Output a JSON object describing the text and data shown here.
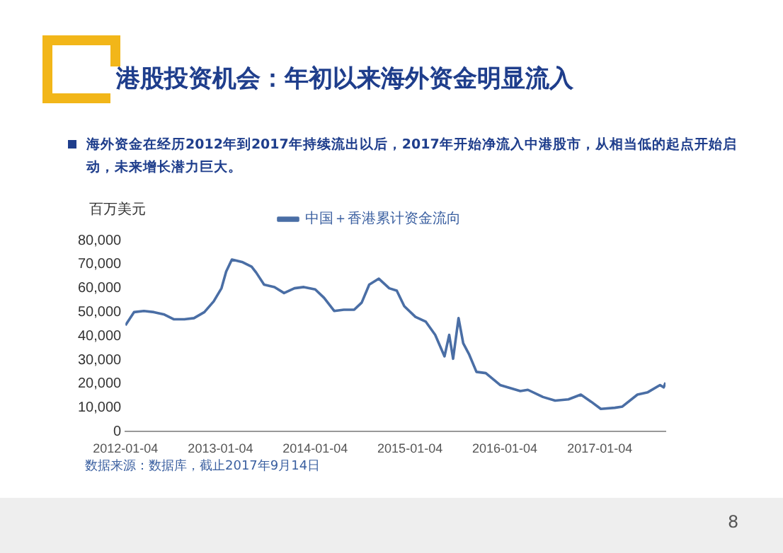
{
  "chart_data": {
    "type": "line",
    "title": "港股投资机会：年初以来海外资金明显流入",
    "subtitle": "海外资金在经历2012年到2017年持续流出以后，2017年开始净流入中港股市，从相当低的起点开始启动，未来增长潜力巨大。",
    "ylabel": "百万美元",
    "annotations": [
      "数据来源：数据库，截止2017年9月14日",
      "8"
    ],
    "x": [
      "2012-01-04",
      "2012-02-06",
      "2012-03-15",
      "2012-04-23",
      "2012-06-02",
      "2012-07-09",
      "2012-08-18",
      "2012-09-24",
      "2012-11-03",
      "2012-12-09",
      "2013-01-08",
      "2013-01-26",
      "2013-02-17",
      "2013-03-28",
      "2013-05-04",
      "2013-05-22",
      "2013-06-21",
      "2013-07-31",
      "2013-09-06",
      "2013-10-16",
      "2013-11-21",
      "2014-01-04",
      "2014-02-07",
      "2014-03-18",
      "2014-04-24",
      "2014-06-03",
      "2014-07-02",
      "2014-07-31",
      "2014-09-06",
      "2014-10-16",
      "2014-11-14",
      "2014-12-13",
      "2015-01-25",
      "2015-03-06",
      "2015-04-11",
      "2015-05-17",
      "2015-06-04",
      "2015-06-19",
      "2015-07-10",
      "2015-07-28",
      "2015-08-19",
      "2015-09-17",
      "2015-10-23",
      "2015-12-17",
      "2016-03-04",
      "2016-04-02",
      "2016-05-30",
      "2016-07-16",
      "2016-09-05",
      "2016-10-23",
      "2016-12-02",
      "2017-01-08",
      "2017-03-03",
      "2017-04-01",
      "2017-05-29",
      "2017-07-08",
      "2017-08-24",
      "2017-09-07",
      "2017-09-14"
    ],
    "series": [
      {
        "name": "中国＋香港累计资金流向",
        "color": "#4a6ea5",
        "values": [
          44500,
          50000,
          50500,
          50000,
          49000,
          47000,
          47000,
          47500,
          50000,
          54500,
          60000,
          67000,
          72000,
          71000,
          69000,
          66500,
          61500,
          60500,
          58000,
          60000,
          60500,
          59500,
          56000,
          50500,
          51000,
          51000,
          54000,
          61500,
          64000,
          60000,
          59000,
          52500,
          48000,
          46000,
          40500,
          31500,
          40500,
          30500,
          47500,
          37000,
          32500,
          25000,
          24500,
          19500,
          17000,
          17500,
          14500,
          13000,
          13500,
          15500,
          12500,
          9500,
          10000,
          10500,
          15500,
          16500,
          19500,
          18500,
          20500
        ]
      }
    ],
    "xlim": [
      "2012-01-04",
      "2017-09-14"
    ],
    "xticks": [
      "2012-01-04",
      "2013-01-04",
      "2014-01-04",
      "2015-01-04",
      "2016-01-04",
      "2017-01-04"
    ],
    "ylim": [
      0,
      80000
    ],
    "yticks": [
      0,
      {
        "value": 10000,
        "label": "10,000"
      },
      {
        "value": 20000,
        "label": "20,000"
      },
      {
        "value": 30000,
        "label": "30,000"
      },
      {
        "value": 40000,
        "label": "40,000"
      },
      {
        "value": 50000,
        "label": "50,000"
      },
      {
        "value": 60000,
        "label": "60,000"
      },
      {
        "value": 70000,
        "label": "70,000"
      },
      {
        "value": 80000,
        "label": "80,000"
      }
    ],
    "grid": false,
    "legend": "top",
    "marker": "none",
    "line_style": "solid"
  }
}
